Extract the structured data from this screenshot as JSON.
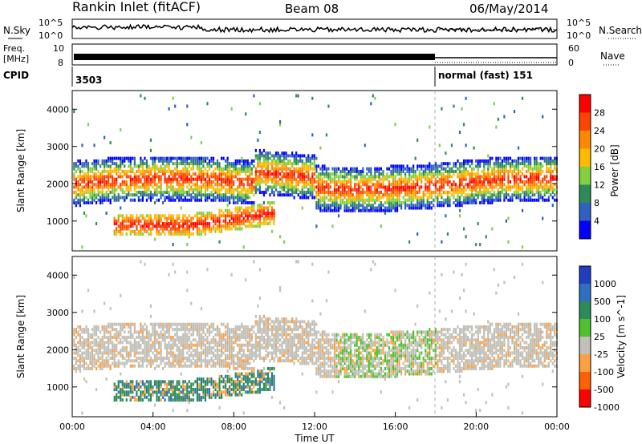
{
  "header": {
    "station": "Rankin Inlet (fitACF)",
    "beam": "Beam 08",
    "date": "06/May/2014"
  },
  "noise_panel": {
    "left_label": "N.Sky",
    "right_label": "N.Search",
    "left_ticks": [
      "10^5",
      "10^0"
    ],
    "right_ticks": [
      "10^5",
      "10^0"
    ]
  },
  "freq_panel": {
    "left_label_1": "Freq.",
    "left_label_2": "[MHz]",
    "left_ticks": [
      "10",
      "8"
    ],
    "right_label": "Nave",
    "right_ticks": [
      "60",
      "0"
    ]
  },
  "cpid_panel": {
    "label": "CPID",
    "segments": [
      {
        "start_hour": 0,
        "text": "3503"
      },
      {
        "start_hour": 18,
        "text": "normal (fast) 151"
      }
    ]
  },
  "chart_data": [
    {
      "type": "heatmap",
      "name": "power",
      "ylabel": "Slant Range [km]",
      "ylim": [
        200,
        4500
      ],
      "yticks": [
        1000,
        2000,
        3000,
        4000
      ],
      "colorbar_label": "Power [dB]",
      "colorbar_ticks": [
        "28",
        "24",
        "20",
        "16",
        "12",
        "8",
        "4"
      ],
      "colorbar_colors": [
        "#ff0000",
        "#ff4400",
        "#ff8800",
        "#ffbb00",
        "#80d040",
        "#2e8b57",
        "#3060c0",
        "#0000ff"
      ],
      "bands": [
        {
          "x": [
            0,
            24
          ],
          "y_center": [
            2000,
            2000
          ],
          "width": 700,
          "level": "moderate"
        },
        {
          "x": [
            2,
            10
          ],
          "y_center": [
            900,
            1200
          ],
          "width": 500,
          "level": "high"
        }
      ]
    },
    {
      "type": "heatmap",
      "name": "velocity",
      "ylabel": "Slant Range [km]",
      "xlabel": "Time UT",
      "ylim": [
        200,
        4500
      ],
      "yticks": [
        1000,
        2000,
        3000,
        4000
      ],
      "xticks": [
        "00:00",
        "04:00",
        "08:00",
        "12:00",
        "16:00",
        "20:00",
        "00:00"
      ],
      "colorbar_label": "Velocity [m s^-1]",
      "colorbar_ticks": [
        "1000",
        "500",
        "100",
        "25",
        "-25",
        "-100",
        "-500",
        "-1000"
      ],
      "colorbar_colors": [
        "#1f3fbf",
        "#2e6fbf",
        "#2e8b57",
        "#50c030",
        "#c0c0b8",
        "#ffa040",
        "#ff6000",
        "#ff0000"
      ]
    }
  ]
}
